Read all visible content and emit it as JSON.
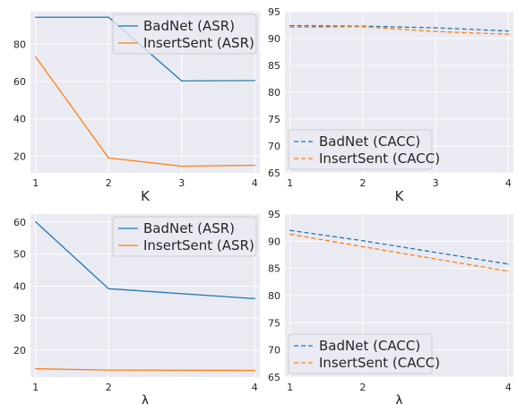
{
  "chart_data": [
    {
      "type": "line",
      "x": [
        1,
        2,
        3,
        4
      ],
      "xticks": [
        "1",
        "2",
        "3",
        "4"
      ],
      "xlabel": "K",
      "ylabel": "",
      "xlim": [
        0.93,
        4.07
      ],
      "ylim": [
        11.0,
        97.5
      ],
      "yticks": [
        20,
        40,
        60,
        80
      ],
      "grid": true,
      "legend": "top-right",
      "series": [
        {
          "name": "BadNet (ASR)",
          "values": [
            94.5,
            94.5,
            60.3,
            60.5
          ],
          "color": "#1f77b4",
          "dash": false
        },
        {
          "name": "InsertSent (ASR)",
          "values": [
            73.3,
            19.0,
            14.6,
            15.1
          ],
          "color": "#ff7f0e",
          "dash": false
        }
      ]
    },
    {
      "type": "line",
      "x": [
        1,
        2,
        3,
        4
      ],
      "xticks": [
        "1",
        "2",
        "3",
        "4"
      ],
      "xlabel": "K",
      "ylabel": "",
      "xlim": [
        0.93,
        4.07
      ],
      "ylim": [
        65,
        95
      ],
      "yticks": [
        65,
        70,
        75,
        80,
        85,
        90,
        95
      ],
      "grid": true,
      "legend": "bottom-left",
      "series": [
        {
          "name": "BadNet (CACC)",
          "values": [
            92.4,
            92.3,
            92.0,
            91.4
          ],
          "color": "#1f77b4",
          "dash": true
        },
        {
          "name": "InsertSent (CACC)",
          "values": [
            92.1,
            92.2,
            91.3,
            90.8
          ],
          "color": "#ff7f0e",
          "dash": true
        }
      ]
    },
    {
      "type": "line",
      "x": [
        1,
        2,
        4
      ],
      "xticks": [
        "1",
        "2",
        "4"
      ],
      "xlabel": "λ",
      "ylabel": "",
      "xlim": [
        0.93,
        4.07
      ],
      "ylim": [
        11.6,
        62.5
      ],
      "yticks": [
        20,
        30,
        40,
        50,
        60
      ],
      "grid": true,
      "legend": "top-right",
      "series": [
        {
          "name": "BadNet (ASR)",
          "values": [
            60.1,
            39.2,
            36.1
          ],
          "color": "#1f77b4",
          "dash": false
        },
        {
          "name": "InsertSent (ASR)",
          "values": [
            14.2,
            13.8,
            13.7
          ],
          "color": "#ff7f0e",
          "dash": false
        }
      ]
    },
    {
      "type": "line",
      "x": [
        1,
        2,
        4
      ],
      "xticks": [
        "1",
        "2",
        "4"
      ],
      "xlabel": "λ",
      "ylabel": "",
      "xlim": [
        0.93,
        4.07
      ],
      "ylim": [
        65,
        95
      ],
      "yticks": [
        65,
        70,
        75,
        80,
        85,
        90,
        95
      ],
      "grid": true,
      "legend": "bottom-left",
      "series": [
        {
          "name": "BadNet (CACC)",
          "values": [
            92.0,
            90.1,
            85.8
          ],
          "color": "#1f77b4",
          "dash": true
        },
        {
          "name": "InsertSent (CACC)",
          "values": [
            91.3,
            89.0,
            84.5
          ],
          "color": "#ff7f0e",
          "dash": true
        }
      ]
    }
  ]
}
